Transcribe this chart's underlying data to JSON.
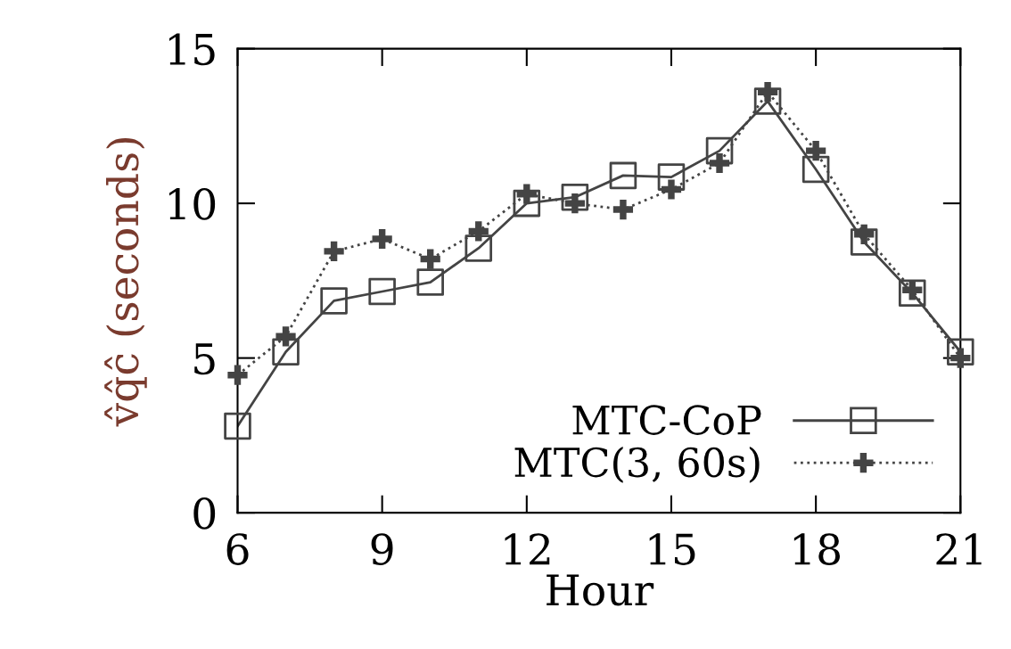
{
  "chart_data": {
    "type": "line",
    "xlabel": "Hour",
    "ylabel": "v̂q̂ĉ (seconds)",
    "x": [
      6,
      7,
      8,
      9,
      10,
      11,
      12,
      13,
      14,
      15,
      16,
      17,
      18,
      19,
      20,
      21
    ],
    "series": [
      {
        "name": "MTC-CoP",
        "color": "#444444",
        "marker": "square",
        "line_style": "solid",
        "values": [
          2.8,
          5.2,
          6.85,
          7.15,
          7.45,
          8.55,
          10.0,
          10.2,
          10.9,
          10.85,
          11.7,
          13.3,
          11.1,
          8.75,
          7.1,
          5.2
        ]
      },
      {
        "name": "MTC(3, 60s)",
        "color": "#444444",
        "marker": "cross",
        "line_style": "dotted",
        "values": [
          4.45,
          5.7,
          8.45,
          8.85,
          8.2,
          9.1,
          10.3,
          10.0,
          9.8,
          10.45,
          11.3,
          13.6,
          11.7,
          9.0,
          7.2,
          5.0
        ]
      }
    ],
    "xlim": [
      6,
      21
    ],
    "xticks": [
      6,
      9,
      12,
      15,
      18,
      21
    ],
    "ylim": [
      0,
      15
    ],
    "yticks": [
      0,
      5,
      10,
      15
    ],
    "grid": false,
    "legend": "bottom right"
  }
}
